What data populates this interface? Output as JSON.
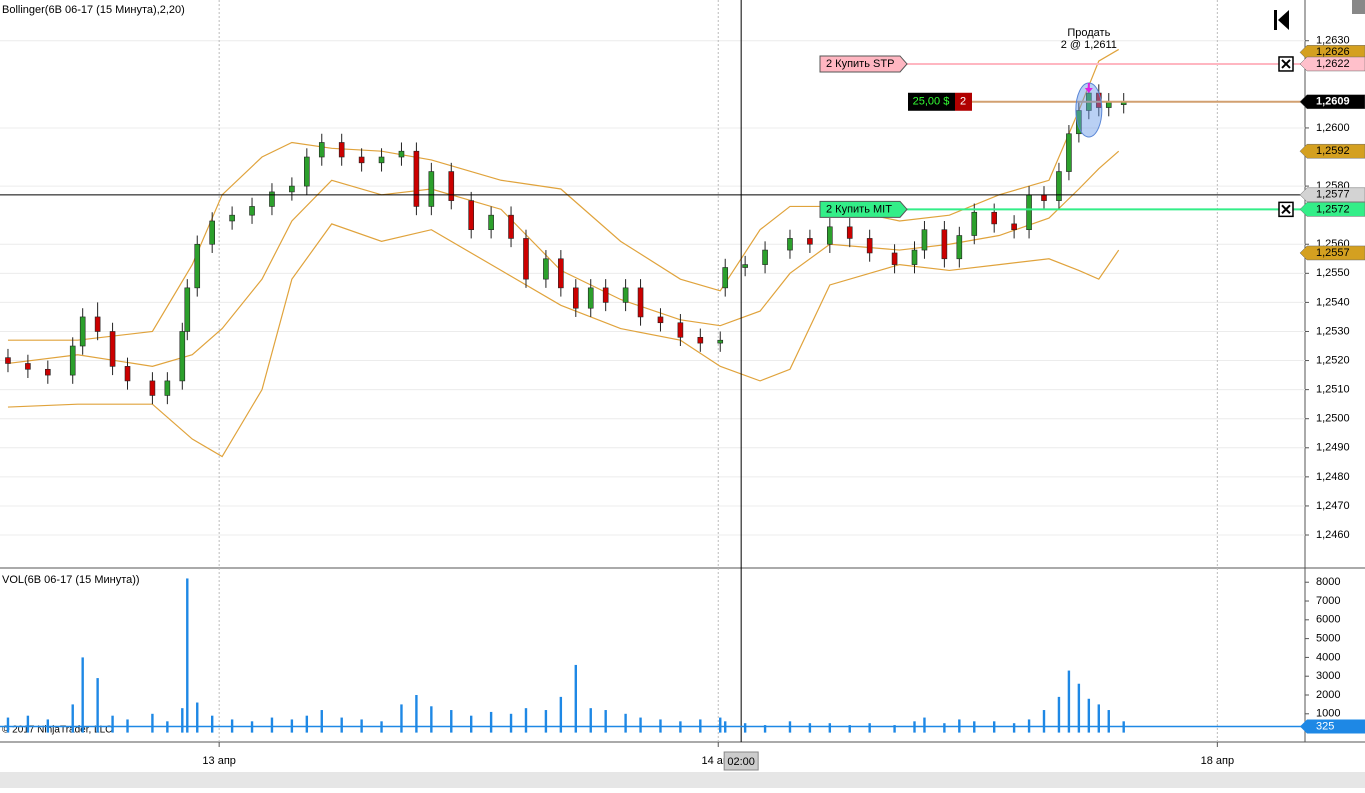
{
  "chart_data": [
    {
      "type": "candlestick",
      "title": "Bollinger(6B 06-17 (15 Минута),2,20)",
      "xlim": [
        -1.6,
        260.4
      ],
      "ylim": [
        1.2449,
        1.2644
      ],
      "xticks": [
        {
          "value": 42.4,
          "label": "13 апр"
        },
        {
          "value": 142.6,
          "label": "14 апр"
        },
        {
          "value": 242.8,
          "label": "18 апр"
        }
      ],
      "yticks": [
        {
          "value": 1.246,
          "label": "1,2460"
        },
        {
          "value": 1.247,
          "label": "1,2470"
        },
        {
          "value": 1.248,
          "label": "1,2480"
        },
        {
          "value": 1.249,
          "label": "1,2490"
        },
        {
          "value": 1.25,
          "label": "1,2500"
        },
        {
          "value": 1.251,
          "label": "1,2510"
        },
        {
          "value": 1.252,
          "label": "1,2520"
        },
        {
          "value": 1.253,
          "label": "1,2530"
        },
        {
          "value": 1.254,
          "label": "1,2540"
        },
        {
          "value": 1.255,
          "label": "1,2550"
        },
        {
          "value": 1.256,
          "label": "1,2560"
        },
        {
          "value": 1.258,
          "label": "1,2580"
        },
        {
          "value": 1.26,
          "label": "1,2600"
        },
        {
          "value": 1.263,
          "label": "1,2630"
        }
      ],
      "grid": true,
      "up_color": "#2ca02c",
      "down_color": "#cc0000",
      "candles": {
        "x": [
          0,
          4,
          8,
          13,
          15,
          18,
          21,
          24,
          29,
          32,
          35,
          36,
          38,
          41,
          45,
          49,
          53,
          57,
          60,
          63,
          67,
          71,
          75,
          79,
          82,
          85,
          89,
          93,
          97,
          101,
          104,
          108,
          111,
          114,
          117,
          120,
          124,
          127,
          131,
          135,
          139,
          143,
          144,
          148,
          152,
          157,
          161,
          165,
          169,
          173,
          178,
          182,
          184,
          188,
          191,
          194,
          198,
          202,
          205,
          208,
          211,
          213,
          215,
          217,
          219,
          221,
          224
        ],
        "open": [
          1.2521,
          1.2519,
          1.2517,
          1.2515,
          1.2525,
          1.2535,
          1.253,
          1.2518,
          1.2513,
          1.2508,
          1.2513,
          1.253,
          1.2545,
          1.256,
          1.2568,
          1.257,
          1.2573,
          1.2578,
          1.258,
          1.259,
          1.2595,
          1.259,
          1.2588,
          1.259,
          1.2592,
          1.2573,
          1.2585,
          1.2575,
          1.2565,
          1.257,
          1.2562,
          1.2548,
          1.2555,
          1.2545,
          1.2538,
          1.2545,
          1.254,
          1.2545,
          1.2535,
          1.2533,
          1.2528,
          1.2526,
          1.2545,
          1.2552,
          1.2553,
          1.2558,
          1.2562,
          1.256,
          1.2566,
          1.2562,
          1.2557,
          1.2553,
          1.2558,
          1.2565,
          1.2555,
          1.2563,
          1.2571,
          1.2567,
          1.2565,
          1.2577,
          1.2575,
          1.2585,
          1.2598,
          1.2606,
          1.2612,
          1.2607,
          1.2608
        ],
        "high": [
          1.2524,
          1.2522,
          1.252,
          1.2528,
          1.2538,
          1.254,
          1.2533,
          1.2521,
          1.2516,
          1.2516,
          1.2533,
          1.2548,
          1.2563,
          1.2571,
          1.2573,
          1.2576,
          1.2581,
          1.2583,
          1.2593,
          1.2598,
          1.2598,
          1.2593,
          1.2593,
          1.2595,
          1.2595,
          1.2588,
          1.2588,
          1.2578,
          1.2573,
          1.2573,
          1.2565,
          1.2558,
          1.2558,
          1.2548,
          1.2548,
          1.2548,
          1.2548,
          1.2548,
          1.2538,
          1.2536,
          1.2531,
          1.253,
          1.2555,
          1.2556,
          1.2561,
          1.2565,
          1.2565,
          1.2569,
          1.2569,
          1.2565,
          1.256,
          1.2561,
          1.2568,
          1.2568,
          1.2566,
          1.2574,
          1.2574,
          1.257,
          1.258,
          1.258,
          1.2588,
          1.2601,
          1.2609,
          1.2615,
          1.2615,
          1.2612,
          1.2612
        ],
        "low": [
          1.2516,
          1.2514,
          1.2512,
          1.2512,
          1.2522,
          1.2527,
          1.2515,
          1.251,
          1.2505,
          1.2505,
          1.251,
          1.2527,
          1.2542,
          1.2557,
          1.2565,
          1.2567,
          1.257,
          1.2575,
          1.2577,
          1.2587,
          1.2587,
          1.2585,
          1.2585,
          1.2587,
          1.257,
          1.257,
          1.2572,
          1.2562,
          1.2562,
          1.2559,
          1.2545,
          1.2545,
          1.2542,
          1.2535,
          1.2535,
          1.2537,
          1.2537,
          1.2532,
          1.253,
          1.2525,
          1.2523,
          1.2523,
          1.2542,
          1.2549,
          1.255,
          1.2555,
          1.2557,
          1.2557,
          1.2559,
          1.2554,
          1.255,
          1.255,
          1.2555,
          1.2552,
          1.2552,
          1.256,
          1.2564,
          1.2562,
          1.2562,
          1.2572,
          1.2572,
          1.2582,
          1.2595,
          1.2603,
          1.2604,
          1.2604,
          1.2605
        ],
        "close": [
          1.2519,
          1.2517,
          1.2515,
          1.2525,
          1.2535,
          1.253,
          1.2518,
          1.2513,
          1.2508,
          1.2513,
          1.253,
          1.2545,
          1.256,
          1.2568,
          1.257,
          1.2573,
          1.2578,
          1.258,
          1.259,
          1.2595,
          1.259,
          1.2588,
          1.259,
          1.2592,
          1.2573,
          1.2585,
          1.2575,
          1.2565,
          1.257,
          1.2562,
          1.2548,
          1.2555,
          1.2545,
          1.2538,
          1.2545,
          1.254,
          1.2545,
          1.2535,
          1.2533,
          1.2528,
          1.2526,
          1.2527,
          1.2552,
          1.2553,
          1.2558,
          1.2562,
          1.256,
          1.2566,
          1.2562,
          1.2557,
          1.2553,
          1.2558,
          1.2565,
          1.2555,
          1.2563,
          1.2571,
          1.2567,
          1.2565,
          1.2577,
          1.2575,
          1.2585,
          1.2598,
          1.2606,
          1.2612,
          1.2607,
          1.2609,
          1.2609
        ]
      },
      "bands": {
        "color": "#e0a33c",
        "x": [
          0,
          14,
          29,
          37,
          43,
          51,
          57,
          65,
          75,
          85,
          99,
          111,
          123,
          135,
          143,
          151,
          157,
          165,
          179,
          189,
          199,
          209,
          215,
          219,
          223
        ],
        "upper": [
          1.2527,
          1.2527,
          1.253,
          1.2553,
          1.2577,
          1.259,
          1.2595,
          1.2593,
          1.2592,
          1.2589,
          1.2582,
          1.2579,
          1.2561,
          1.2548,
          1.2544,
          1.2565,
          1.2573,
          1.2573,
          1.2568,
          1.257,
          1.2577,
          1.2582,
          1.2606,
          1.2623,
          1.2627
        ],
        "middle": [
          1.2519,
          1.2522,
          1.2518,
          1.2522,
          1.2531,
          1.2548,
          1.2568,
          1.2582,
          1.2577,
          1.2579,
          1.2572,
          1.2551,
          1.2541,
          1.2534,
          1.2532,
          1.2537,
          1.255,
          1.256,
          1.2558,
          1.256,
          1.2563,
          1.2569,
          1.2579,
          1.2586,
          1.2592
        ],
        "lower": [
          1.2504,
          1.2505,
          1.2505,
          1.2493,
          1.2487,
          1.251,
          1.2548,
          1.2567,
          1.2561,
          1.2565,
          1.2551,
          1.2539,
          1.2531,
          1.2527,
          1.2518,
          1.2513,
          1.2517,
          1.2546,
          1.2553,
          1.2551,
          1.2553,
          1.2555,
          1.2551,
          1.2548,
          1.2558
        ]
      },
      "price_markers": [
        {
          "value": 1.2626,
          "label": "1,2626",
          "color": "#d4a020"
        },
        {
          "value": 1.2622,
          "label": "1,2622",
          "color": "#ffc0cb"
        },
        {
          "value": 1.2609,
          "label": "1,2609",
          "color": "#000000"
        },
        {
          "value": 1.2592,
          "label": "1,2592",
          "color": "#d4a020"
        },
        {
          "value": 1.2577,
          "label": "1,2577",
          "color": "#d3d3d3"
        },
        {
          "value": 1.2572,
          "label": "1,2572",
          "color": "#33ee88"
        },
        {
          "value": 1.2557,
          "label": "1,2557",
          "color": "#d4a020"
        }
      ],
      "orders": [
        {
          "label": "2  Купить STP",
          "price": 1.2622,
          "color": "#ffb6c1"
        },
        {
          "label": "2  Купить MIT",
          "price": 1.2572,
          "color": "#33ee88"
        }
      ],
      "position": {
        "pnl": "25,00 $",
        "quantity": "2",
        "price": 1.2609,
        "color": "#d2a070"
      },
      "execution": {
        "label": "Продать",
        "detail": "2 @ 1,2611",
        "price": 1.2611,
        "x": 217
      },
      "crosshair": {
        "price": 1.2577,
        "x": 147.2,
        "time_label": "02:00"
      },
      "copyright": "© 2017 NinjaTrader, LLC"
    },
    {
      "type": "bar",
      "title": "VOL(6B 06-17 (15 Минута))",
      "ylim": [
        -500,
        8650
      ],
      "yticks": [
        1000,
        2000,
        3000,
        4000,
        5000,
        6000,
        7000,
        8000
      ],
      "color": "#1e88e5",
      "x": [
        0,
        4,
        8,
        13,
        15,
        18,
        21,
        24,
        29,
        32,
        35,
        36,
        38,
        41,
        45,
        49,
        53,
        57,
        60,
        63,
        67,
        71,
        75,
        79,
        82,
        85,
        89,
        93,
        97,
        101,
        104,
        108,
        111,
        114,
        117,
        120,
        124,
        127,
        131,
        135,
        139,
        143,
        144,
        148,
        152,
        157,
        161,
        165,
        169,
        173,
        178,
        182,
        184,
        188,
        191,
        194,
        198,
        202,
        205,
        208,
        211,
        213,
        215,
        217,
        219,
        221,
        224
      ],
      "values": [
        800,
        900,
        700,
        1500,
        4000,
        2900,
        900,
        700,
        1000,
        600,
        1300,
        8200,
        1600,
        900,
        700,
        600,
        800,
        700,
        900,
        1200,
        800,
        700,
        600,
        1500,
        2000,
        1400,
        1200,
        900,
        1100,
        1000,
        1300,
        1200,
        1900,
        3600,
        1300,
        1200,
        1000,
        800,
        700,
        600,
        700,
        800,
        600,
        500,
        400,
        600,
        500,
        500,
        400,
        500,
        400,
        600,
        800,
        500,
        700,
        600,
        600,
        500,
        700,
        1200,
        1900,
        3300,
        2600,
        1800,
        1500,
        1200,
        600
      ],
      "last_value": {
        "value": 325,
        "label": "325"
      }
    }
  ]
}
